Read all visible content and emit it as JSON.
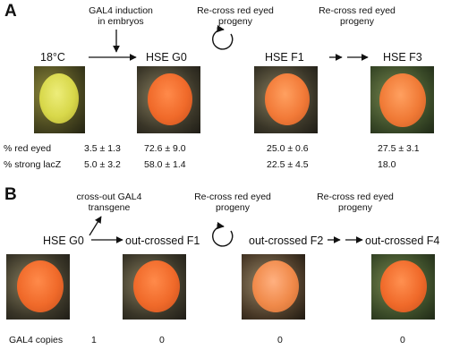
{
  "panel_a": {
    "label": "A",
    "annotation_induction": [
      "GAL4 induction",
      "in embryos"
    ],
    "annotation_recross_1": [
      "Re-cross red eyed",
      "progeny"
    ],
    "annotation_recross_2": [
      "Re-cross red eyed",
      "progeny"
    ],
    "stages": [
      "18°C",
      "HSE G0",
      "HSE F1",
      "HSE F3"
    ],
    "rows": [
      {
        "label": "% red eyed",
        "values": [
          "3.5 ± 1.3",
          "72.6 ± 9.0",
          "25.0 ± 0.6",
          "27.5 ± 3.1"
        ]
      },
      {
        "label": "% strong lacZ",
        "values": [
          "5.0 ± 3.2",
          "58.0 ± 1.4",
          "22.5 ± 4.5",
          "18.0"
        ]
      }
    ]
  },
  "panel_b": {
    "label": "B",
    "annotation_crossout": [
      "cross-out GAL4",
      "transgene"
    ],
    "annotation_recross_1": [
      "Re-cross red eyed",
      "progeny"
    ],
    "annotation_recross_2": [
      "Re-cross red eyed",
      "progeny"
    ],
    "stages": [
      "HSE G0",
      "out-crossed F1",
      "out-crossed F2",
      "out-crossed F4"
    ],
    "copies_label": "GAL4 copies",
    "copies": [
      "1",
      "0",
      "0",
      "0"
    ]
  },
  "colors": {
    "eye_yellow": "#d8d84a",
    "eye_orange": "#f06a2a",
    "photo_bg": "#1a1a1a"
  }
}
